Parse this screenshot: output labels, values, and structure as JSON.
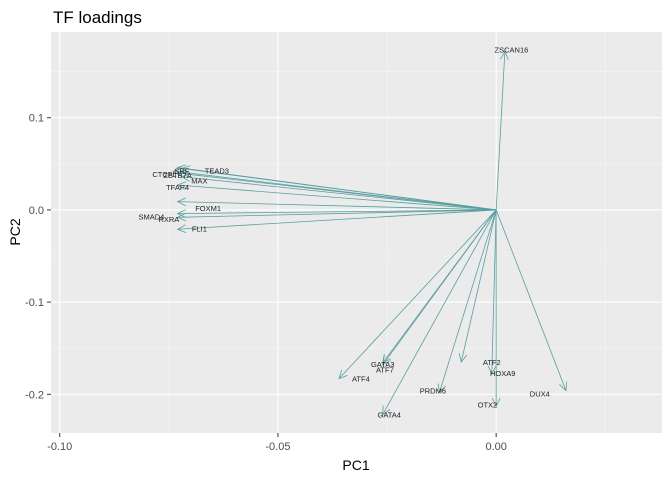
{
  "chart_data": {
    "type": "scatter",
    "title": "TF loadings",
    "xlabel": "PC1",
    "ylabel": "PC2",
    "xlim": [
      -0.102,
      0.038
    ],
    "ylim": [
      -0.242,
      0.193
    ],
    "x_ticks": [
      -0.1,
      -0.05,
      0.0
    ],
    "x_tick_labels": [
      "-0.10",
      "-0.05",
      "0.00"
    ],
    "y_ticks": [
      -0.2,
      -0.1,
      0.0,
      0.1
    ],
    "y_tick_labels": [
      "-0.2",
      "-0.1",
      "0.0",
      "0.1"
    ],
    "grid": true,
    "origin": [
      0.0,
      0.0
    ],
    "vector_color": "#5a9ea0",
    "panel_background": "#ebebeb",
    "grid_major_color": "#ffffff",
    "grid_minor_color": "#f5f5f5",
    "vectors": [
      {
        "name": "ZSCAN16",
        "x": 0.002,
        "y": 0.172
      },
      {
        "name": "TEAD3",
        "x": -0.072,
        "y": 0.045
      },
      {
        "name": "SRF",
        "x": -0.073,
        "y": 0.046
      },
      {
        "name": "CTCFL",
        "x": -0.074,
        "y": 0.042
      },
      {
        "name": "ZBTB7A",
        "x": -0.073,
        "y": 0.04
      },
      {
        "name": "MAX",
        "x": -0.072,
        "y": 0.036
      },
      {
        "name": "TFAP4",
        "x": -0.073,
        "y": 0.027
      },
      {
        "name": "FOXM1",
        "x": -0.073,
        "y": 0.009
      },
      {
        "name": "SMAD4",
        "x": -0.073,
        "y": -0.004
      },
      {
        "name": "RXRA",
        "x": -0.073,
        "y": -0.008
      },
      {
        "name": "FLI1",
        "x": -0.073,
        "y": -0.021
      },
      {
        "name": "ATF4",
        "x": -0.036,
        "y": -0.183
      },
      {
        "name": "GATA3",
        "x": -0.026,
        "y": -0.166
      },
      {
        "name": "ATF7",
        "x": -0.026,
        "y": -0.168
      },
      {
        "name": "GATA4",
        "x": -0.026,
        "y": -0.222
      },
      {
        "name": "PRDM6",
        "x": -0.013,
        "y": -0.198
      },
      {
        "name": "ATF2",
        "x": -0.008,
        "y": -0.165
      },
      {
        "name": "HOXA9",
        "x": -0.001,
        "y": -0.178
      },
      {
        "name": "OTX2",
        "x": 0.0,
        "y": -0.213
      },
      {
        "name": "DUX4",
        "x": 0.016,
        "y": -0.196
      }
    ],
    "labels": [
      {
        "text": "ZSCAN16",
        "x": 0.0035,
        "y": 0.174
      },
      {
        "text": "TEAD3",
        "x": -0.064,
        "y": 0.043
      },
      {
        "text": "SRF",
        "x": -0.072,
        "y": 0.043
      },
      {
        "text": "CTCFL",
        "x": -0.076,
        "y": 0.039
      },
      {
        "text": "ZBTB7A",
        "x": -0.073,
        "y": 0.038
      },
      {
        "text": "MAX",
        "x": -0.068,
        "y": 0.032
      },
      {
        "text": "TFAP4",
        "x": -0.073,
        "y": 0.025
      },
      {
        "text": "FOXM1",
        "x": -0.066,
        "y": 0.002
      },
      {
        "text": "SMAD4",
        "x": -0.079,
        "y": -0.007
      },
      {
        "text": "RXRA",
        "x": -0.075,
        "y": -0.01
      },
      {
        "text": "FLI1",
        "x": -0.068,
        "y": -0.02
      },
      {
        "text": "ATF4",
        "x": -0.031,
        "y": -0.183
      },
      {
        "text": "GATA3",
        "x": -0.026,
        "y": -0.167
      },
      {
        "text": "ATF7",
        "x": -0.0255,
        "y": -0.173
      },
      {
        "text": "GATA4",
        "x": -0.0245,
        "y": -0.222
      },
      {
        "text": "PRDM6",
        "x": -0.0145,
        "y": -0.196
      },
      {
        "text": "ATF2",
        "x": -0.001,
        "y": -0.165
      },
      {
        "text": "HOXA9",
        "x": 0.0015,
        "y": -0.177
      },
      {
        "text": "OTX2",
        "x": -0.002,
        "y": -0.211
      },
      {
        "text": "DUX4",
        "x": 0.01,
        "y": -0.199
      }
    ]
  }
}
